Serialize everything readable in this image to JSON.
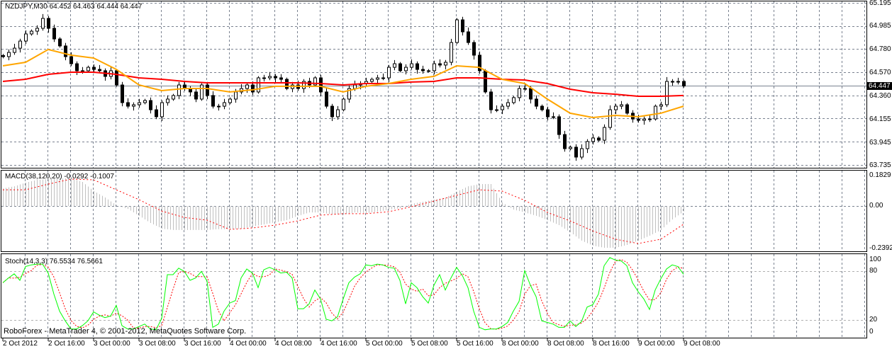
{
  "main": {
    "title": "NZDJPY,M30  64.452 64.463 64.444 64.447",
    "current_price": "64.447",
    "price_axis": [
      "65.195",
      "64.985",
      "64.780",
      "64.570",
      "64.360",
      "64.155",
      "63.945",
      "63.735"
    ],
    "colors": {
      "fast_ma": "#ffa500",
      "slow_ma": "#ff0000",
      "bull": "#ffffff",
      "bear": "#000000",
      "grid": "#7a8290"
    },
    "closes": [
      64.711,
      64.749,
      64.787,
      64.851,
      64.915,
      64.94,
      64.966,
      65.055,
      64.966,
      64.87,
      64.807,
      64.711,
      64.647,
      64.584,
      64.584,
      64.615,
      64.596,
      64.584,
      64.533,
      64.584,
      64.456,
      64.297,
      64.265,
      64.278,
      64.297,
      64.316,
      64.233,
      64.17,
      64.297,
      64.329,
      64.361,
      64.456,
      64.424,
      64.393,
      64.329,
      64.456,
      64.361,
      64.265,
      64.265,
      64.297,
      64.329,
      64.393,
      64.424,
      64.456,
      64.393,
      64.52,
      64.52,
      64.533,
      64.52,
      64.507,
      64.424,
      64.456,
      64.424,
      64.488,
      64.456,
      64.52,
      64.393,
      64.265,
      64.17,
      64.233,
      64.329,
      64.424,
      64.456,
      64.469,
      64.488,
      64.507,
      64.52,
      64.52,
      64.615,
      64.647,
      64.584,
      64.615,
      64.647,
      64.596,
      64.584,
      64.584,
      64.647,
      64.635,
      64.66,
      64.838,
      65.042,
      64.934,
      64.838,
      64.724,
      64.584,
      64.393,
      64.233,
      64.233,
      64.265,
      64.297,
      64.342,
      64.424,
      64.424,
      64.329,
      64.265,
      64.233,
      64.17,
      64.17,
      64.01,
      63.883,
      63.896,
      63.807,
      63.883,
      63.947,
      63.979,
      63.959,
      64.074,
      64.233,
      64.265,
      64.278,
      64.202,
      64.15,
      64.138,
      64.15,
      64.15,
      64.265,
      64.278,
      64.488,
      64.488,
      64.488,
      64.447
    ],
    "fast_ma": [
      64.628,
      64.66,
      64.775,
      64.724,
      64.698,
      64.596,
      64.456,
      64.405,
      64.424,
      64.424,
      64.393,
      64.412,
      64.444,
      64.444,
      64.444,
      64.393,
      64.444,
      64.469,
      64.507,
      64.533,
      64.628,
      64.615,
      64.507,
      64.469,
      64.329,
      64.202,
      64.163,
      64.182,
      64.17,
      64.202,
      64.265
    ],
    "slow_ma": [
      64.488,
      64.507,
      64.552,
      64.571,
      64.571,
      64.552,
      64.52,
      64.507,
      64.488,
      64.475,
      64.475,
      64.475,
      64.475,
      64.475,
      64.469,
      64.456,
      64.469,
      64.469,
      64.482,
      64.488,
      64.52,
      64.52,
      64.507,
      64.501,
      64.469,
      64.418,
      64.386,
      64.373,
      64.354,
      64.354,
      64.361
    ]
  },
  "macd": {
    "title": "MACD(38,120,20) -0.0292 -0.1007",
    "axis": [
      "0.1829",
      "0.00",
      "-0.2392"
    ],
    "colors": {
      "histogram": "#c0c0c0",
      "signal": "#ff0000"
    },
    "histogram": [
      0.1,
      0.112,
      0.132,
      0.148,
      0.152,
      0.156,
      0.156,
      0.136,
      0.085,
      0.049,
      0.005,
      -0.015,
      -0.054,
      -0.094,
      -0.126,
      -0.133,
      -0.133,
      -0.133,
      -0.133,
      -0.129,
      -0.129,
      -0.126,
      -0.114,
      -0.102,
      -0.09,
      -0.078,
      -0.054,
      -0.035,
      -0.035,
      -0.046,
      -0.046,
      -0.035,
      -0.039,
      -0.031,
      -0.019,
      -0.011,
      0.013,
      0.025,
      0.037,
      0.049,
      0.081,
      0.112,
      0.124,
      0.124,
      0.021,
      -0.019,
      -0.035,
      -0.054,
      -0.078,
      -0.106,
      -0.146,
      -0.193,
      -0.221,
      -0.233,
      -0.233,
      -0.217,
      -0.193,
      -0.165,
      -0.133,
      -0.074,
      -0.029
    ],
    "signal": [
      0.092,
      0.092,
      0.124,
      0.152,
      0.148,
      0.092,
      0.037,
      -0.027,
      -0.063,
      -0.078,
      -0.13,
      -0.122,
      -0.106,
      -0.082,
      -0.05,
      -0.042,
      -0.042,
      -0.031,
      -0.003,
      0.029,
      0.061,
      0.092,
      0.085,
      0.033,
      -0.035,
      -0.082,
      -0.138,
      -0.185,
      -0.209,
      -0.185,
      -0.101
    ]
  },
  "stoch": {
    "title": "Stoch(14,3,3) 76.5534 76.5661",
    "axis": [
      "100",
      "80",
      "20",
      "0"
    ],
    "colors": {
      "main": "#00ff00",
      "signal": "#ff0000"
    },
    "k": [
      66,
      72,
      77,
      69,
      86,
      88,
      89,
      89,
      78,
      52,
      31,
      19,
      9,
      9,
      13,
      19,
      30,
      26,
      23,
      25,
      38,
      13,
      9,
      9,
      12,
      15,
      9,
      8,
      22,
      76,
      76,
      84,
      80,
      69,
      72,
      80,
      68,
      11,
      15,
      31,
      41,
      44,
      72,
      83,
      78,
      60,
      82,
      85,
      82,
      78,
      79,
      72,
      34,
      34,
      40,
      57,
      46,
      21,
      19,
      24,
      46,
      66,
      73,
      77,
      88,
      87,
      89,
      88,
      85,
      84,
      69,
      40,
      66,
      60,
      49,
      41,
      63,
      76,
      57,
      72,
      85,
      75,
      60,
      31,
      11,
      8,
      9,
      9,
      12,
      17,
      31,
      43,
      81,
      63,
      49,
      19,
      17,
      15,
      11,
      11,
      19,
      12,
      18,
      36,
      39,
      52,
      87,
      97,
      94,
      93,
      87,
      66,
      55,
      46,
      33,
      57,
      71,
      83,
      88,
      86,
      76.55
    ]
  },
  "time_axis": [
    "2 Oct 2012",
    "2 Oct 16:00",
    "3 Oct 00:00",
    "3 Oct 08:00",
    "3 Oct 16:00",
    "4 Oct 00:00",
    "4 Oct 08:00",
    "4 Oct 16:00",
    "5 Oct 00:00",
    "5 Oct 08:00",
    "5 Oct 16:00",
    "8 Oct 00:00",
    "8 Oct 08:00",
    "8 Oct 16:00",
    "9 Oct 00:00",
    "9 Oct 08:00"
  ],
  "copyright": "RoboForex - MetaTrader 4, © 2001-2012, MetaQuotes Software Corp."
}
